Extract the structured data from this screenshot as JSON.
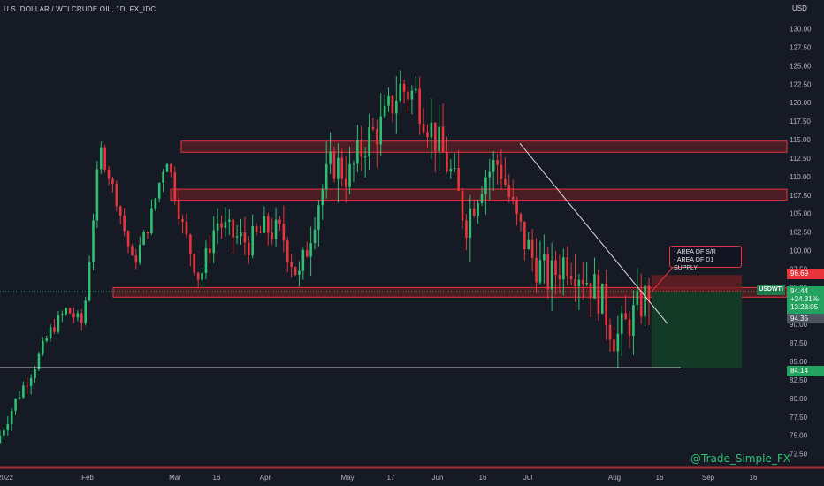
{
  "header": {
    "title": "U.S. DOLLAR / WTI CRUDE OIL, 1D, FX_IDC",
    "currency": "USD"
  },
  "watermark": "@Trade_Simple_FX",
  "callout": {
    "line1": "- AREA OF S/R",
    "line2": "- AREA OF D1 SUPPLY"
  },
  "symbol_tag": "USDWTI",
  "price_tags": {
    "current_price": "94.44",
    "current_change": "+24.31%",
    "current_countdown": "13:28:05",
    "stop": "96.69",
    "entry": "94.35",
    "target": "84.14"
  },
  "colors": {
    "background": "#161a25",
    "up": "#2fbf72",
    "down": "#e8353b",
    "zone_fill": "#5c1f24",
    "profit_fill": "#133a26",
    "trendline": "#e0e0e0"
  },
  "chart_data": {
    "type": "candlestick",
    "title": "U.S. DOLLAR / WTI CRUDE OIL, 1D, FX_IDC",
    "x_tick_labels": [
      "2022",
      "Feb",
      "Mar",
      "16",
      "Apr",
      "May",
      "17",
      "Jun",
      "16",
      "Jul",
      "Aug",
      "16",
      "Sep",
      "16"
    ],
    "y_tick_labels": [
      "130.00",
      "127.50",
      "125.00",
      "122.50",
      "120.00",
      "117.50",
      "115.00",
      "112.50",
      "110.00",
      "107.50",
      "105.00",
      "102.50",
      "100.00",
      "97.50",
      "95.00",
      "92.50",
      "90.00",
      "87.50",
      "85.00",
      "82.50",
      "80.00",
      "77.50",
      "75.00",
      "72.50"
    ],
    "ylim": [
      71.5,
      131.5
    ],
    "close_path": [
      75.0,
      80.0,
      84.0,
      89.0,
      92.0,
      90.0,
      114.0,
      107.0,
      98.0,
      104.0,
      113.0,
      103.0,
      96.0,
      104.0,
      102.0,
      101.0,
      103.0,
      102.0,
      96.0,
      106.0,
      112.0,
      110.0,
      115.0,
      117.0,
      122.0,
      121.0,
      116.0,
      111.0,
      104.0,
      110.0,
      112.0,
      104.0,
      99.0,
      96.0,
      99.0,
      97.0,
      94.0,
      88.0,
      91.0,
      94.44
    ],
    "candle_count": 168,
    "zones": [
      {
        "label": "resistance zone",
        "from": 113.3,
        "to": 114.8
      },
      {
        "label": "supply zone",
        "from": 106.8,
        "to": 108.3
      },
      {
        "label": "support/resistance zone",
        "from": 93.7,
        "to": 95.0
      }
    ],
    "horizontal_line": 84.14,
    "trendline": [
      {
        "date": "Jun 27",
        "price": 114.5
      },
      {
        "date": "Aug 15",
        "price": 92.5
      }
    ],
    "position": {
      "stop": 96.69,
      "entry": 94.35,
      "target": 84.14
    },
    "last_price": 94.44
  }
}
